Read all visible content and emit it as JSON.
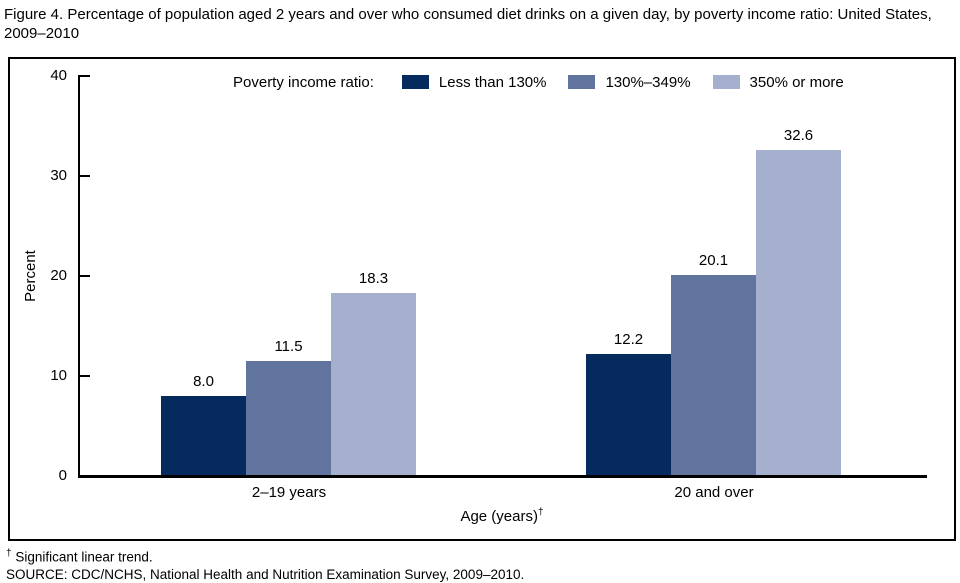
{
  "figure": {
    "title": "Figure 4. Percentage of population aged 2 years and over who consumed diet drinks on a given day, by poverty income ratio: United States, 2009–2010"
  },
  "chart_data": {
    "type": "bar",
    "title": "Percentage of population aged 2 years and over who consumed diet drinks on a given day, by poverty income ratio",
    "categories": [
      "2–19 years",
      "20 and over"
    ],
    "series": [
      {
        "name": "Less than 130%",
        "color": "#052a5e",
        "values": [
          8.0,
          12.2
        ],
        "value_labels": [
          "8.0",
          "12.2"
        ]
      },
      {
        "name": "130%–349%",
        "color": "#60749e",
        "values": [
          11.5,
          20.1
        ],
        "value_labels": [
          "11.5",
          "20.1"
        ]
      },
      {
        "name": "350% or more",
        "color": "#a5b0cf",
        "values": [
          18.3,
          32.6
        ],
        "value_labels": [
          "18.3",
          "32.6"
        ]
      }
    ],
    "legend_title": "Poverty income ratio:",
    "legend_position": "top",
    "xlabel": "Age (years)",
    "xlabel_sup": "†",
    "ylabel": "Percent",
    "ylim": [
      0,
      40
    ],
    "yticks": [
      0,
      10,
      20,
      30,
      40
    ],
    "grid": false
  },
  "footnotes": {
    "dagger": "†",
    "trend": "Significant linear trend.",
    "source": "SOURCE: CDC/NCHS, National Health and Nutrition Examination Survey, 2009–2010."
  }
}
